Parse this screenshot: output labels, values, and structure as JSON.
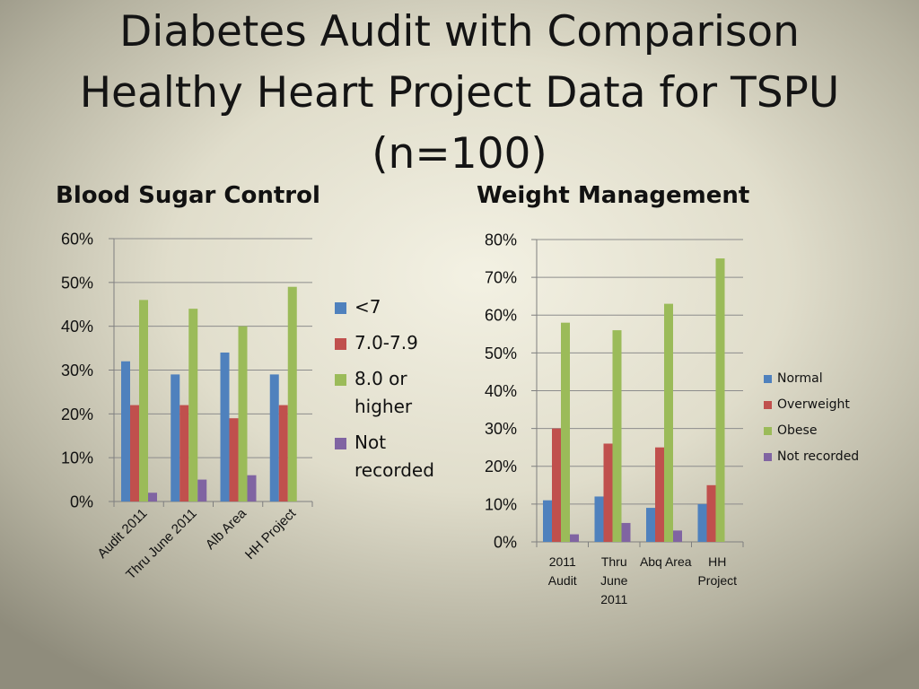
{
  "title": {
    "line1": "Diabetes  Audit with Comparison",
    "line2": "Healthy Heart Project Data for TSPU",
    "line3": "(n=100)"
  },
  "colors": {
    "blue": "#4f81bd",
    "red": "#c0504d",
    "green": "#9bbb59",
    "purple": "#8064a2",
    "axis": "#7f7f7f",
    "grid": "#8c8c8c"
  },
  "chart_data": [
    {
      "type": "bar",
      "title": "Blood Sugar Control",
      "categories": [
        "Audit 2011",
        "Thru June 2011",
        "Alb Area",
        "HH Project"
      ],
      "series": [
        {
          "name": "<7",
          "values": [
            32,
            29,
            34,
            29
          ]
        },
        {
          "name": "7.0-7.9",
          "values": [
            22,
            22,
            19,
            22
          ]
        },
        {
          "name": "8.0 or higher",
          "values": [
            46,
            44,
            40,
            49
          ]
        },
        {
          "name": "Not recorded",
          "values": [
            2,
            5,
            6,
            0
          ]
        }
      ],
      "ylim": [
        0,
        60
      ],
      "yticks": [
        "0%",
        "10%",
        "20%",
        "30%",
        "40%",
        "50%",
        "60%"
      ],
      "grid": true,
      "legend": "right",
      "xlabel": "",
      "ylabel": ""
    },
    {
      "type": "bar",
      "title": "Weight Management",
      "categories": [
        "2011 Audit",
        "Thru June 2011",
        "Abq Area",
        "HH Project"
      ],
      "series": [
        {
          "name": "Normal",
          "values": [
            11,
            12,
            9,
            10
          ]
        },
        {
          "name": "Overweight",
          "values": [
            30,
            26,
            25,
            15
          ]
        },
        {
          "name": "Obese",
          "values": [
            58,
            56,
            63,
            75
          ]
        },
        {
          "name": "Not recorded",
          "values": [
            2,
            5,
            3,
            0
          ]
        }
      ],
      "ylim": [
        0,
        80
      ],
      "yticks": [
        "0%",
        "10%",
        "20%",
        "30%",
        "40%",
        "50%",
        "60%",
        "70%",
        "80%"
      ],
      "grid": true,
      "legend": "right",
      "xlabel": "",
      "ylabel": ""
    }
  ]
}
